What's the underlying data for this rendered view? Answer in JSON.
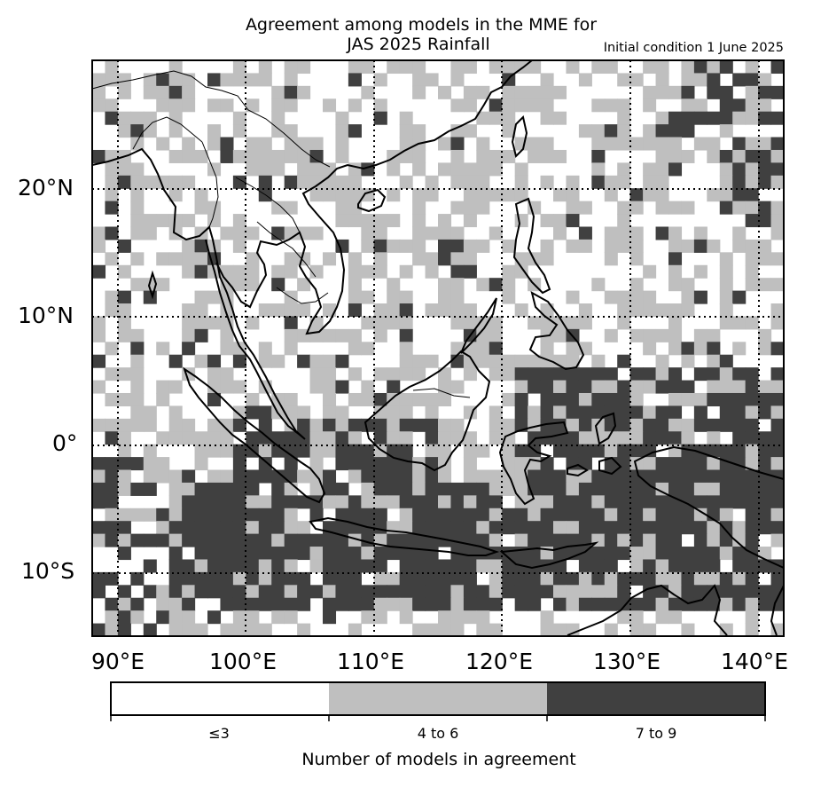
{
  "title_line1": "Agreement among models in the MME for",
  "title_line2": "JAS 2025  Rainfall",
  "initial_condition": "Initial condition 1 June 2025",
  "lat_labels": [
    "20°N",
    "10°N",
    "0°",
    "10°S"
  ],
  "lon_labels": [
    "90°E",
    "100°E",
    "110°E",
    "120°E",
    "130°E",
    "140°E"
  ],
  "colorbar": {
    "title": "Number of models in agreement",
    "categories": [
      "≤3",
      "4 to 6",
      "7 to 9"
    ],
    "colors": [
      "#ffffff",
      "#bfbfbf",
      "#404040"
    ]
  }
}
